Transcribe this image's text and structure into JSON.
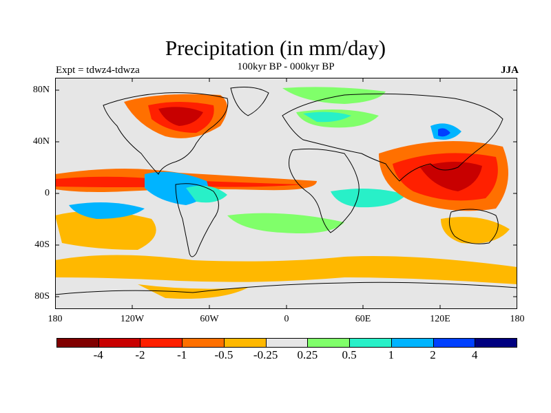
{
  "title": "Precipitation (in mm/day)",
  "subtitle": "100kyr BP - 000kyr BP",
  "experiment": "Expt = tdwz4-tdwza",
  "season": "JJA",
  "lat_labels": [
    "80N",
    "40N",
    "0",
    "40S",
    "80S"
  ],
  "lon_labels": [
    "180",
    "120W",
    "60W",
    "0",
    "60E",
    "120E",
    "180"
  ],
  "colorbar": {
    "colors": [
      "#800000",
      "#c80000",
      "#ff2000",
      "#ff7000",
      "#ffb800",
      "#e6e6e6",
      "#80ff6a",
      "#28f0c8",
      "#00b4ff",
      "#0040ff",
      "#000080"
    ],
    "labels": [
      "-4",
      "-2",
      "-1",
      "-0.5",
      "-0.25",
      "0.25",
      "0.5",
      "1",
      "2",
      "4"
    ]
  }
}
